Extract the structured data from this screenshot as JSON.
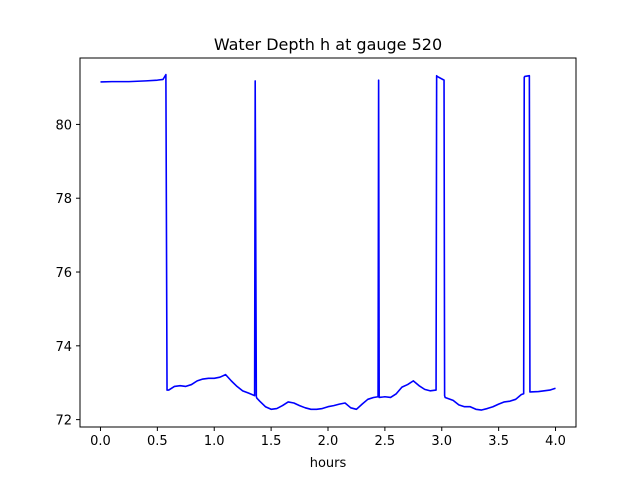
{
  "chart_data": {
    "type": "line",
    "title": "Water Depth h at gauge 520",
    "xlabel": "hours",
    "ylabel": "",
    "xlim": [
      -0.18,
      4.18
    ],
    "ylim": [
      71.8,
      81.8
    ],
    "grid": false,
    "line_color": "#0000ff",
    "x_ticks": [
      0.0,
      0.5,
      1.0,
      1.5,
      2.0,
      2.5,
      3.0,
      3.5,
      4.0
    ],
    "x_tick_labels": [
      "0.0",
      "0.5",
      "1.0",
      "1.5",
      "2.0",
      "2.5",
      "3.0",
      "3.5",
      "4.0"
    ],
    "y_ticks": [
      72,
      74,
      76,
      78,
      80
    ],
    "y_tick_labels": [
      "72",
      "74",
      "76",
      "78",
      "80"
    ],
    "series": [
      {
        "x": [
          0.0,
          0.1,
          0.25,
          0.4,
          0.5,
          0.55,
          0.575,
          0.585,
          0.6,
          0.65,
          0.7,
          0.75,
          0.8,
          0.85,
          0.9,
          0.95,
          1.0,
          1.05,
          1.1,
          1.15,
          1.2,
          1.25,
          1.3,
          1.355,
          1.36,
          1.37,
          1.375,
          1.4,
          1.45,
          1.5,
          1.55,
          1.6,
          1.65,
          1.7,
          1.75,
          1.8,
          1.85,
          1.9,
          1.95,
          2.0,
          2.05,
          2.1,
          2.15,
          2.2,
          2.25,
          2.3,
          2.35,
          2.4,
          2.44,
          2.445,
          2.45,
          2.5,
          2.55,
          2.6,
          2.65,
          2.7,
          2.75,
          2.8,
          2.85,
          2.9,
          2.95,
          2.955,
          2.96,
          3.02,
          3.025,
          3.03,
          3.1,
          3.15,
          3.2,
          3.25,
          3.3,
          3.35,
          3.4,
          3.45,
          3.5,
          3.55,
          3.6,
          3.65,
          3.7,
          3.72,
          3.725,
          3.73,
          3.77,
          3.775,
          3.78,
          3.85,
          3.9,
          3.95,
          4.0
        ],
        "y": [
          81.15,
          81.16,
          81.16,
          81.18,
          81.2,
          81.22,
          81.35,
          72.8,
          72.8,
          72.9,
          72.92,
          72.9,
          72.95,
          73.05,
          73.1,
          73.12,
          73.12,
          73.15,
          73.22,
          73.05,
          72.9,
          72.78,
          72.72,
          72.65,
          81.18,
          72.62,
          72.58,
          72.5,
          72.35,
          72.28,
          72.3,
          72.38,
          72.48,
          72.45,
          72.38,
          72.32,
          72.28,
          72.28,
          72.3,
          72.35,
          72.38,
          72.42,
          72.45,
          72.32,
          72.28,
          72.42,
          72.55,
          72.6,
          72.62,
          81.2,
          72.6,
          72.62,
          72.6,
          72.7,
          72.88,
          72.95,
          73.05,
          72.92,
          72.82,
          72.78,
          72.8,
          81.32,
          81.3,
          81.2,
          72.65,
          72.6,
          72.52,
          72.4,
          72.35,
          72.35,
          72.28,
          72.26,
          72.3,
          72.35,
          72.42,
          72.48,
          72.5,
          72.55,
          72.68,
          72.7,
          81.28,
          81.3,
          81.32,
          72.75,
          72.75,
          72.76,
          72.78,
          72.8,
          72.85
        ]
      }
    ]
  }
}
